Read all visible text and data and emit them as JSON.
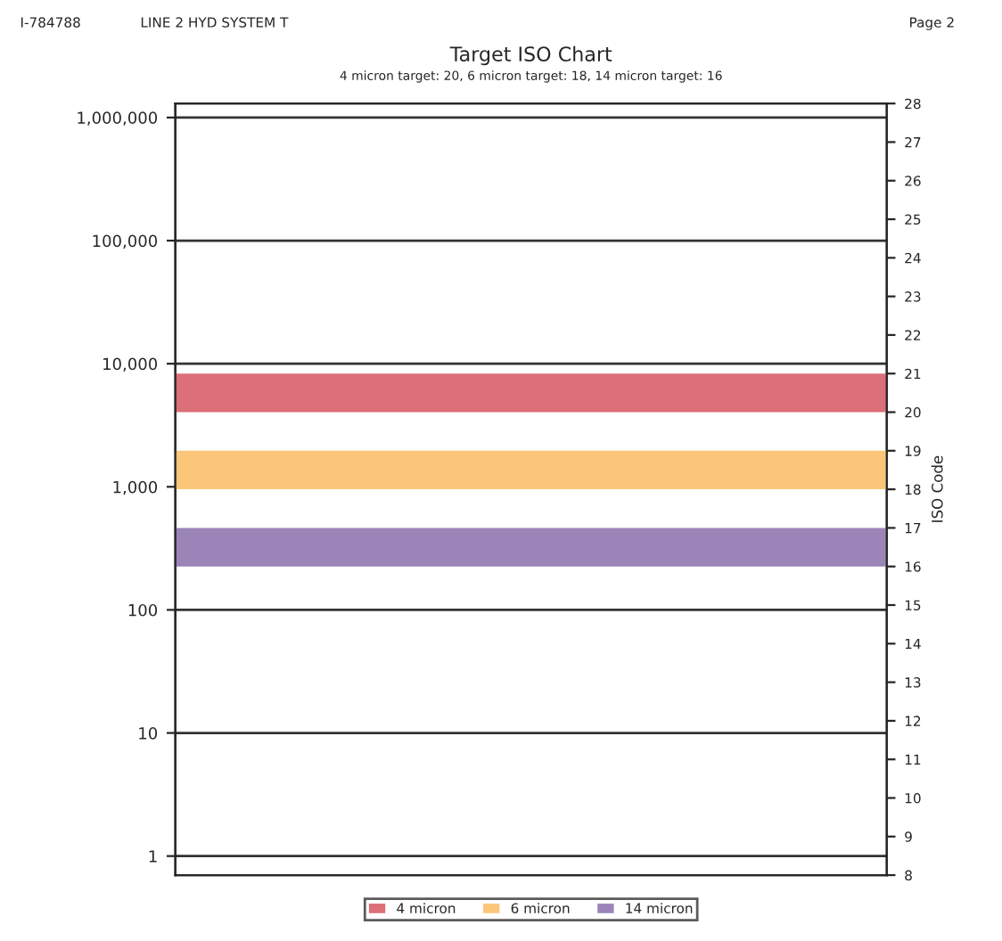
{
  "chart_data": {
    "type": "bar",
    "title": "Target ISO Chart",
    "subtitle": "4 micron target: 20, 6 micron target: 18, 14 micron target: 16",
    "y2label": "ISO Code",
    "annotations": [
      "I-784788",
      "LINE 2 HYD SYSTEM T",
      "Page 2"
    ],
    "categories": [
      null
    ],
    "series": [
      {
        "name": "4 micron",
        "color": "#dc6f78",
        "axis": "y2",
        "base": [
          20
        ],
        "values": [
          1
        ]
      },
      {
        "name": "6 micron",
        "color": "#fbc679",
        "axis": "y2",
        "base": [
          18
        ],
        "values": [
          1
        ]
      },
      {
        "name": "14 micron",
        "color": "#9b85b8",
        "axis": "y2",
        "base": [
          16
        ],
        "values": [
          1
        ]
      }
    ],
    "log": "y",
    "ylim": [
      0.7,
      1300000
    ],
    "yticks": [
      {
        "value": 1,
        "label": "1"
      },
      {
        "value": 10,
        "label": "10"
      },
      {
        "value": 100,
        "label": "100"
      },
      {
        "value": 1000,
        "label": "1,000"
      },
      {
        "value": 10000,
        "label": "10,000"
      },
      {
        "value": 100000,
        "label": "100,000"
      },
      {
        "value": 1000000,
        "label": "1,000,000"
      }
    ],
    "y2lim": [
      8,
      28
    ],
    "y2ticks": [
      8,
      9,
      10,
      11,
      12,
      13,
      14,
      15,
      16,
      17,
      18,
      19,
      20,
      21,
      22,
      23,
      24,
      25,
      26,
      27,
      28
    ],
    "grid": "y",
    "legend": "bottom"
  }
}
